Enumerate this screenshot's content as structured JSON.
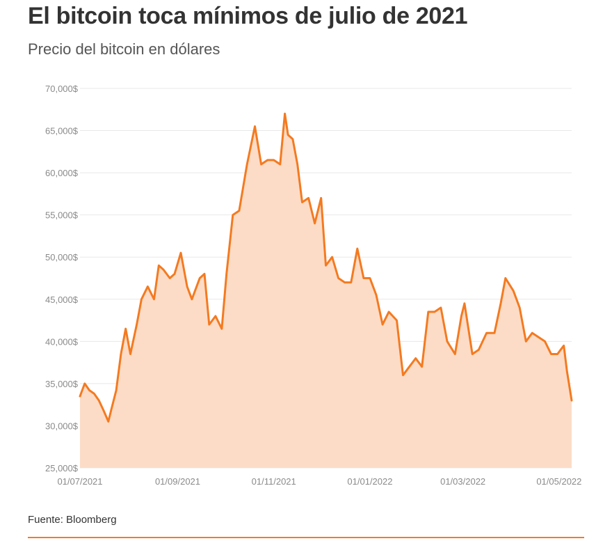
{
  "title": "El bitcoin toca mínimos de julio de 2021",
  "subtitle": "Precio del bitcoin en dólares",
  "source": "Fuente: Bloomberg",
  "colors": {
    "line": "#f47a20",
    "area": "#fcdcc7",
    "grid": "#e8e8e8",
    "tick": "#8a8a8a",
    "rule": "#f47a20"
  },
  "chart_data": {
    "type": "area",
    "title": "El bitcoin toca mínimos de julio de 2021",
    "subtitle": "Precio del bitcoin en dólares",
    "xlabel": "",
    "ylabel": "",
    "ylim": [
      25000,
      70000
    ],
    "xlim": [
      "2021-07-01",
      "2022-05-09"
    ],
    "y_ticks": [
      25000,
      30000,
      35000,
      40000,
      45000,
      50000,
      55000,
      60000,
      65000,
      70000
    ],
    "y_tick_labels": [
      "25,000$",
      "30,000$",
      "35,000$",
      "40,000$",
      "45,000$",
      "50,000$",
      "55,000$",
      "60,000$",
      "65,000$",
      "70,000$"
    ],
    "x_tick_labels": [
      {
        "date": "2021-07-01",
        "label": "01/07/2021"
      },
      {
        "date": "2021-09-01",
        "label": "01/09/2021"
      },
      {
        "date": "2021-11-01",
        "label": "01/11/2021"
      },
      {
        "date": "2022-01-01",
        "label": "01/01/2022"
      },
      {
        "date": "2022-03-01",
        "label": "01/03/2022"
      },
      {
        "date": "2022-05-01",
        "label": "01/05/2022"
      }
    ],
    "grid": true,
    "legend": "none",
    "series": [
      {
        "x": [
          "2021-07-01",
          "2021-07-04",
          "2021-07-07",
          "2021-07-10",
          "2021-07-13",
          "2021-07-16",
          "2021-07-19",
          "2021-07-21",
          "2021-07-24",
          "2021-07-27",
          "2021-07-30",
          "2021-08-02",
          "2021-08-06",
          "2021-08-09",
          "2021-08-13",
          "2021-08-17",
          "2021-08-20",
          "2021-08-23",
          "2021-08-27",
          "2021-08-30",
          "2021-09-03",
          "2021-09-07",
          "2021-09-10",
          "2021-09-15",
          "2021-09-18",
          "2021-09-21",
          "2021-09-25",
          "2021-09-29",
          "2021-10-02",
          "2021-10-06",
          "2021-10-10",
          "2021-10-15",
          "2021-10-20",
          "2021-10-24",
          "2021-10-28",
          "2021-11-01",
          "2021-11-05",
          "2021-11-08",
          "2021-11-10",
          "2021-11-13",
          "2021-11-16",
          "2021-11-19",
          "2021-11-23",
          "2021-11-27",
          "2021-12-01",
          "2021-12-04",
          "2021-12-08",
          "2021-12-12",
          "2021-12-16",
          "2021-12-20",
          "2021-12-24",
          "2021-12-28",
          "2022-01-01",
          "2022-01-05",
          "2022-01-09",
          "2022-01-13",
          "2022-01-18",
          "2022-01-22",
          "2022-01-26",
          "2022-01-30",
          "2022-02-03",
          "2022-02-07",
          "2022-02-11",
          "2022-02-15",
          "2022-02-19",
          "2022-02-24",
          "2022-02-28",
          "2022-03-02",
          "2022-03-07",
          "2022-03-11",
          "2022-03-16",
          "2022-03-21",
          "2022-03-25",
          "2022-03-28",
          "2022-04-02",
          "2022-04-06",
          "2022-04-10",
          "2022-04-14",
          "2022-04-18",
          "2022-04-22",
          "2022-04-26",
          "2022-04-30",
          "2022-05-02",
          "2022-05-04",
          "2022-05-06",
          "2022-05-09"
        ],
        "values": [
          33500,
          35000,
          34200,
          33800,
          33000,
          31800,
          30500,
          32000,
          34200,
          38500,
          41500,
          38500,
          42000,
          45000,
          46500,
          45000,
          49000,
          48500,
          47500,
          48000,
          50500,
          46500,
          45000,
          47500,
          48000,
          42000,
          43000,
          41500,
          48000,
          55000,
          55500,
          61000,
          65500,
          61000,
          61500,
          61500,
          61000,
          67000,
          64500,
          64000,
          61000,
          56500,
          57000,
          54000,
          57000,
          49000,
          50000,
          47500,
          47000,
          47000,
          51000,
          47500,
          47500,
          45500,
          42000,
          43500,
          42500,
          36000,
          37000,
          38000,
          37000,
          43500,
          43500,
          44000,
          40000,
          38500,
          43000,
          44500,
          38500,
          39000,
          41000,
          41000,
          44500,
          47500,
          46000,
          44000,
          40000,
          41000,
          40500,
          40000,
          38500,
          38500,
          39000,
          39500,
          36500,
          33000
        ]
      }
    ]
  }
}
